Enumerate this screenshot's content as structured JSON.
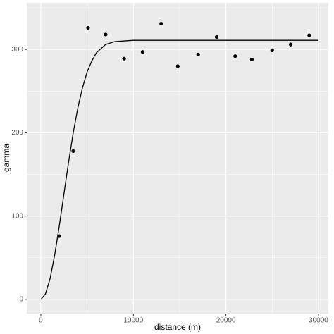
{
  "chart_data": {
    "type": "scatter",
    "x_label": "distance (m)",
    "y_label": "gamma",
    "x": [
      2000,
      3500,
      5100,
      7000,
      9000,
      11000,
      13000,
      14800,
      17000,
      19000,
      21000,
      22800,
      25000,
      27000,
      29000
    ],
    "values": [
      76,
      178,
      326,
      318,
      289,
      297,
      331,
      280,
      294,
      315,
      292,
      288,
      299,
      306,
      317
    ],
    "color": "#000000",
    "fit_line": {
      "x": [
        0,
        500,
        1000,
        1500,
        2000,
        2500,
        3000,
        3500,
        4000,
        4500,
        5000,
        5500,
        6000,
        7000,
        8000,
        10000,
        15000,
        20000,
        30000
      ],
      "values": [
        0,
        6.5,
        25,
        53.6,
        88.7,
        127,
        165,
        200,
        230,
        254,
        273,
        286,
        296,
        306,
        309.5,
        311,
        311,
        311,
        311
      ],
      "color": "#000000"
    },
    "xlim": [
      -1520,
      31070
    ],
    "ylim": [
      -17,
      356
    ],
    "xticks": [
      0,
      10000,
      20000,
      30000
    ],
    "yticks": [
      0,
      100,
      200,
      300
    ],
    "x_minor_breaks": [
      5000,
      15000,
      25000
    ],
    "y_minor_breaks": [
      50,
      150,
      250,
      350
    ],
    "grid": true
  }
}
